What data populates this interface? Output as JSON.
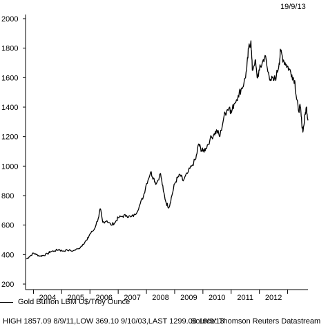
{
  "header": {
    "date": "19/9/13"
  },
  "legend": {
    "label": "Gold Bullion LBM U$/Troy Ounce"
  },
  "footer": {
    "stats": "HIGH 1857.09 8/9/11,LOW 369.10 9/10/03,LAST 1299.08 19/9/13",
    "source": "Source: Thomson Reuters Datastream"
  },
  "chart_data": {
    "type": "line",
    "title": "",
    "xlabel": "",
    "ylabel": "",
    "ylim": [
      200,
      2000
    ],
    "yticks": [
      200,
      400,
      600,
      800,
      1000,
      1200,
      1400,
      1600,
      1800,
      2000
    ],
    "xlim": [
      2003.72,
      2013.72
    ],
    "xtick_labels": [
      "2004",
      "2005",
      "2006",
      "2007",
      "2008",
      "2009",
      "2010",
      "2011",
      "2012"
    ],
    "grid": false,
    "series": [
      {
        "name": "Gold Bullion LBM U$/Troy Ounce",
        "color": "#000000",
        "x": [
          2003.75,
          2003.85,
          2004.0,
          2004.1,
          2004.25,
          2004.35,
          2004.5,
          2004.6,
          2004.75,
          2004.9,
          2005.0,
          2005.2,
          2005.4,
          2005.6,
          2005.75,
          2005.9,
          2006.0,
          2006.15,
          2006.3,
          2006.37,
          2006.45,
          2006.6,
          2006.75,
          2006.9,
          2007.0,
          2007.15,
          2007.3,
          2007.45,
          2007.6,
          2007.75,
          2007.9,
          2008.0,
          2008.15,
          2008.25,
          2008.35,
          2008.5,
          2008.6,
          2008.7,
          2008.8,
          2008.9,
          2009.0,
          2009.1,
          2009.2,
          2009.3,
          2009.45,
          2009.6,
          2009.75,
          2009.85,
          2009.92,
          2010.0,
          2010.1,
          2010.25,
          2010.4,
          2010.5,
          2010.6,
          2010.75,
          2010.85,
          2010.95,
          2011.0,
          2011.1,
          2011.25,
          2011.35,
          2011.45,
          2011.55,
          2011.62,
          2011.7,
          2011.75,
          2011.85,
          2011.92,
          2012.0,
          2012.1,
          2012.2,
          2012.3,
          2012.4,
          2012.5,
          2012.6,
          2012.7,
          2012.75,
          2012.85,
          2012.95,
          2013.05,
          2013.15,
          2013.25,
          2013.3,
          2013.38,
          2013.45,
          2013.5,
          2013.55,
          2013.62,
          2013.67,
          2013.72
        ],
        "values": [
          370,
          385,
          410,
          400,
          390,
          395,
          405,
          420,
          425,
          435,
          425,
          430,
          425,
          440,
          470,
          500,
          540,
          570,
          650,
          710,
          620,
          630,
          600,
          620,
          650,
          660,
          665,
          655,
          670,
          730,
          800,
          880,
          960,
          920,
          880,
          950,
          830,
          750,
          720,
          800,
          880,
          920,
          940,
          900,
          950,
          1000,
          1050,
          1150,
          1120,
          1100,
          1120,
          1180,
          1220,
          1240,
          1200,
          1340,
          1380,
          1400,
          1360,
          1420,
          1480,
          1520,
          1560,
          1650,
          1800,
          1850,
          1650,
          1720,
          1600,
          1650,
          1700,
          1750,
          1640,
          1590,
          1580,
          1610,
          1700,
          1780,
          1720,
          1690,
          1660,
          1620,
          1580,
          1480,
          1380,
          1400,
          1290,
          1240,
          1350,
          1400,
          1310
        ]
      }
    ]
  }
}
